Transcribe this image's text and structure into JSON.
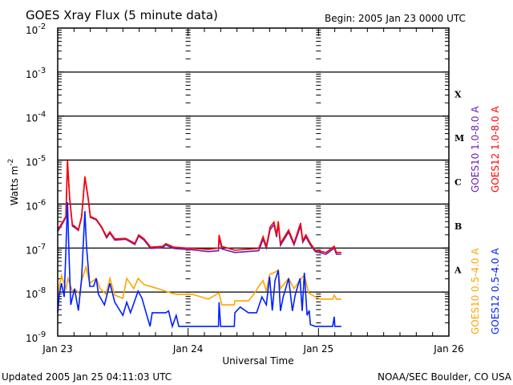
{
  "title": "GOES Xray Flux (5 minute data)",
  "begin_label": "Begin:  2005 Jan 23 0000 UTC",
  "updated_label": "Updated 2005 Jan 25 04:11:03 UTC",
  "credit_label": "NOAA/SEC Boulder, CO USA",
  "chart_data": {
    "type": "line",
    "title": "GOES Xray Flux (5 minute data)",
    "xlabel": "Universal Time",
    "ylabel": "Watts m",
    "ylabel_exp": "-2",
    "yscale": "log",
    "ylim_log10": [
      -9,
      -2
    ],
    "xlim_hours": [
      0,
      72
    ],
    "x_units": "hours since 2005 Jan 23 0000 UTC",
    "x_ticks": [
      {
        "hours": 0,
        "label": "Jan 23"
      },
      {
        "hours": 24,
        "label": "Jan 24"
      },
      {
        "hours": 48,
        "label": "Jan 25"
      },
      {
        "hours": 72,
        "label": "Jan 26"
      }
    ],
    "y_ticks": [
      {
        "log10": -2,
        "base": "10",
        "exp": "-2"
      },
      {
        "log10": -3,
        "base": "10",
        "exp": "-3"
      },
      {
        "log10": -4,
        "base": "10",
        "exp": "-4"
      },
      {
        "log10": -5,
        "base": "10",
        "exp": "-5"
      },
      {
        "log10": -6,
        "base": "10",
        "exp": "-6"
      },
      {
        "log10": -7,
        "base": "10",
        "exp": "-7"
      },
      {
        "log10": -8,
        "base": "10",
        "exp": "-8"
      },
      {
        "log10": -9,
        "base": "10",
        "exp": "-9"
      }
    ],
    "flare_classes": [
      {
        "label": "X",
        "log10": -3.5
      },
      {
        "label": "M",
        "log10": -4.5
      },
      {
        "label": "C",
        "log10": -5.5
      },
      {
        "label": "B",
        "log10": -6.5
      },
      {
        "label": "A",
        "log10": -7.5
      }
    ],
    "grid": "horizontal at each decade",
    "series": [
      {
        "name": "GOES10 1.0-8.0 A",
        "color": "#6a1fb0",
        "points_hours_log10": [
          [
            0,
            -6.62
          ],
          [
            0.9,
            -6.44
          ],
          [
            1.5,
            -6.3
          ],
          [
            1.8,
            -5.03
          ],
          [
            2.2,
            -5.88
          ],
          [
            2.7,
            -6.5
          ],
          [
            3.1,
            -6.53
          ],
          [
            3.8,
            -6.6
          ],
          [
            4.4,
            -6.3
          ],
          [
            5.0,
            -5.4
          ],
          [
            5.6,
            -5.88
          ],
          [
            6.0,
            -6.3
          ],
          [
            7.1,
            -6.36
          ],
          [
            8.1,
            -6.54
          ],
          [
            9.0,
            -6.77
          ],
          [
            9.6,
            -6.66
          ],
          [
            10.5,
            -6.82
          ],
          [
            12.5,
            -6.8
          ],
          [
            14.2,
            -6.92
          ],
          [
            14.9,
            -6.73
          ],
          [
            15.9,
            -6.82
          ],
          [
            17.1,
            -7.01
          ],
          [
            19.3,
            -6.99
          ],
          [
            19.9,
            -6.93
          ],
          [
            21.4,
            -7.01
          ],
          [
            24.8,
            -7.04
          ],
          [
            27.7,
            -7.08
          ],
          [
            29.6,
            -7.06
          ],
          [
            29.7,
            -6.76
          ],
          [
            30.2,
            -7.02
          ],
          [
            32.6,
            -7.1
          ],
          [
            37.0,
            -7.06
          ],
          [
            37.8,
            -6.8
          ],
          [
            38.4,
            -7.0
          ],
          [
            39.1,
            -6.58
          ],
          [
            39.8,
            -6.47
          ],
          [
            40.3,
            -6.75
          ],
          [
            40.6,
            -6.45
          ],
          [
            41.0,
            -6.94
          ],
          [
            42.5,
            -6.64
          ],
          [
            43.5,
            -6.93
          ],
          [
            44.7,
            -6.5
          ],
          [
            45.1,
            -6.87
          ],
          [
            45.7,
            -6.75
          ],
          [
            46.5,
            -6.93
          ],
          [
            47.4,
            -7.08
          ],
          [
            49.4,
            -7.14
          ],
          [
            50.9,
            -7.0
          ],
          [
            51.3,
            -7.14
          ],
          [
            52.2,
            -7.14
          ]
        ]
      },
      {
        "name": "GOES12 1.0-8.0 A",
        "color": "#ff0000",
        "points_hours_log10": [
          [
            0,
            -6.59
          ],
          [
            0.9,
            -6.41
          ],
          [
            1.5,
            -6.28
          ],
          [
            1.8,
            -5.01
          ],
          [
            2.2,
            -5.86
          ],
          [
            2.7,
            -6.47
          ],
          [
            3.1,
            -6.5
          ],
          [
            3.8,
            -6.58
          ],
          [
            4.4,
            -6.28
          ],
          [
            5.0,
            -5.37
          ],
          [
            5.6,
            -5.86
          ],
          [
            6.0,
            -6.28
          ],
          [
            7.1,
            -6.34
          ],
          [
            8.1,
            -6.52
          ],
          [
            9.0,
            -6.74
          ],
          [
            9.6,
            -6.63
          ],
          [
            10.5,
            -6.79
          ],
          [
            12.5,
            -6.78
          ],
          [
            14.2,
            -6.89
          ],
          [
            14.9,
            -6.7
          ],
          [
            15.9,
            -6.79
          ],
          [
            17.1,
            -6.98
          ],
          [
            19.3,
            -6.96
          ],
          [
            19.9,
            -6.9
          ],
          [
            21.4,
            -6.98
          ],
          [
            24.8,
            -7.01
          ],
          [
            27.7,
            -7.03
          ],
          [
            29.6,
            -7.0
          ],
          [
            29.7,
            -6.7
          ],
          [
            30.2,
            -6.96
          ],
          [
            32.6,
            -7.05
          ],
          [
            37.0,
            -7.01
          ],
          [
            37.8,
            -6.74
          ],
          [
            38.4,
            -6.96
          ],
          [
            39.1,
            -6.52
          ],
          [
            39.8,
            -6.41
          ],
          [
            40.3,
            -6.7
          ],
          [
            40.6,
            -6.39
          ],
          [
            41.0,
            -6.89
          ],
          [
            42.5,
            -6.59
          ],
          [
            43.5,
            -6.89
          ],
          [
            44.7,
            -6.43
          ],
          [
            45.1,
            -6.83
          ],
          [
            45.7,
            -6.7
          ],
          [
            46.5,
            -6.89
          ],
          [
            47.4,
            -7.05
          ],
          [
            49.4,
            -7.1
          ],
          [
            50.9,
            -6.96
          ],
          [
            51.3,
            -7.1
          ],
          [
            52.2,
            -7.1
          ]
        ]
      },
      {
        "name": "GOES10 0.5-4.0 A",
        "color": "#ffa500",
        "points_hours_log10": [
          [
            0,
            -8.05
          ],
          [
            0.7,
            -7.62
          ],
          [
            1.5,
            -7.92
          ],
          [
            1.9,
            -7.69
          ],
          [
            2.7,
            -7.98
          ],
          [
            3.4,
            -7.96
          ],
          [
            4.1,
            -8.05
          ],
          [
            4.4,
            -7.74
          ],
          [
            5.2,
            -7.43
          ],
          [
            5.9,
            -7.8
          ],
          [
            7.1,
            -7.69
          ],
          [
            7.8,
            -7.92
          ],
          [
            8.9,
            -8.05
          ],
          [
            9.6,
            -7.69
          ],
          [
            10.5,
            -8.07
          ],
          [
            12.0,
            -8.14
          ],
          [
            12.7,
            -7.69
          ],
          [
            14.0,
            -7.92
          ],
          [
            14.8,
            -7.69
          ],
          [
            15.9,
            -7.83
          ],
          [
            18.4,
            -7.92
          ],
          [
            20.8,
            -8.02
          ],
          [
            21.8,
            -8.05
          ],
          [
            24.8,
            -8.05
          ],
          [
            27.7,
            -8.16
          ],
          [
            29.7,
            -8.02
          ],
          [
            30.2,
            -8.29
          ],
          [
            32.5,
            -8.29
          ],
          [
            32.6,
            -8.2
          ],
          [
            35.1,
            -8.2
          ],
          [
            36.1,
            -8.05
          ],
          [
            37.0,
            -7.87
          ],
          [
            37.8,
            -7.74
          ],
          [
            38.4,
            -7.98
          ],
          [
            39.0,
            -7.6
          ],
          [
            39.8,
            -7.56
          ],
          [
            40.6,
            -7.5
          ],
          [
            41.0,
            -7.92
          ],
          [
            42.5,
            -7.69
          ],
          [
            43.5,
            -7.92
          ],
          [
            44.7,
            -7.71
          ],
          [
            45.4,
            -7.61
          ],
          [
            46.2,
            -8.02
          ],
          [
            47.4,
            -8.11
          ],
          [
            48.4,
            -8.16
          ],
          [
            50.6,
            -8.16
          ],
          [
            50.9,
            -8.07
          ],
          [
            51.3,
            -8.16
          ],
          [
            52.2,
            -8.16
          ]
        ]
      },
      {
        "name": "GOES12 0.5-4.0 A",
        "color": "#0020ff",
        "points_hours_log10": [
          [
            0,
            -8.47
          ],
          [
            0.3,
            -8.05
          ],
          [
            0.7,
            -7.8
          ],
          [
            1.2,
            -8.11
          ],
          [
            1.5,
            -7.07
          ],
          [
            1.8,
            -5.96
          ],
          [
            2.1,
            -7.2
          ],
          [
            2.4,
            -8.29
          ],
          [
            3.1,
            -7.92
          ],
          [
            3.8,
            -8.42
          ],
          [
            4.4,
            -7.69
          ],
          [
            5.0,
            -6.16
          ],
          [
            5.3,
            -6.96
          ],
          [
            5.9,
            -7.87
          ],
          [
            6.6,
            -7.87
          ],
          [
            7.1,
            -7.69
          ],
          [
            7.5,
            -8.05
          ],
          [
            8.6,
            -8.29
          ],
          [
            9.6,
            -7.8
          ],
          [
            10.5,
            -8.23
          ],
          [
            12.0,
            -8.53
          ],
          [
            12.7,
            -8.23
          ],
          [
            13.4,
            -8.47
          ],
          [
            14.8,
            -7.98
          ],
          [
            15.5,
            -8.14
          ],
          [
            16.4,
            -8.53
          ],
          [
            17.0,
            -8.78
          ],
          [
            17.4,
            -8.47
          ],
          [
            19.9,
            -8.47
          ],
          [
            20.4,
            -8.43
          ],
          [
            21.1,
            -8.78
          ],
          [
            21.8,
            -8.53
          ],
          [
            22.3,
            -8.78
          ],
          [
            29.6,
            -8.78
          ],
          [
            29.7,
            -8.23
          ],
          [
            30.0,
            -8.78
          ],
          [
            32.5,
            -8.78
          ],
          [
            32.6,
            -8.47
          ],
          [
            33.6,
            -8.34
          ],
          [
            35.1,
            -8.47
          ],
          [
            36.6,
            -8.47
          ],
          [
            37.6,
            -8.11
          ],
          [
            38.4,
            -8.29
          ],
          [
            39.0,
            -7.65
          ],
          [
            39.5,
            -8.42
          ],
          [
            40.0,
            -7.74
          ],
          [
            40.6,
            -7.5
          ],
          [
            41.0,
            -8.43
          ],
          [
            41.5,
            -8.11
          ],
          [
            42.5,
            -7.69
          ],
          [
            43.2,
            -8.43
          ],
          [
            43.7,
            -8.07
          ],
          [
            44.6,
            -7.69
          ],
          [
            45.0,
            -8.43
          ],
          [
            45.4,
            -7.56
          ],
          [
            45.9,
            -8.53
          ],
          [
            46.3,
            -8.42
          ],
          [
            46.5,
            -8.74
          ],
          [
            47.4,
            -8.78
          ],
          [
            50.6,
            -8.78
          ],
          [
            50.9,
            -8.56
          ],
          [
            51.0,
            -8.78
          ],
          [
            52.2,
            -8.78
          ]
        ]
      }
    ]
  }
}
